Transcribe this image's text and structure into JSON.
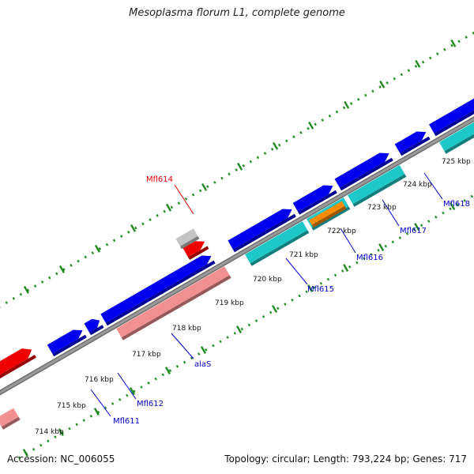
{
  "title": "Mesoplasma florum L1, complete genome",
  "footer": {
    "accession": "Accession: NC_006055",
    "topology": "Topology: circular; Length: 793,224 bp; Genes: 717"
  },
  "colors": {
    "backbone": "#9a9a9a",
    "tick": "#1f8a1f",
    "cds_forward": "#0000ee",
    "cds_reverse": "#1ec8c8",
    "trna_reverse": "#f09090",
    "rrna_reverse": "#ff8c00",
    "pseudo": "#c4c4c4",
    "highlight": "#ee0000",
    "label": "#0000cc",
    "highlight_label": "#dd0000"
  },
  "scale_labels": [
    "714 kbp",
    "715 kbp",
    "716 kbp",
    "717 kbp",
    "718 kbp",
    "719 kbp",
    "720 kbp",
    "721 kbp",
    "722 kbp",
    "723 kbp",
    "724 kbp",
    "725 kbp"
  ],
  "gene_labels": [
    {
      "id": "Mfl611",
      "text": "Mfl611",
      "color": "#0000cc"
    },
    {
      "id": "Mfl612",
      "text": "Mfl612",
      "color": "#0000cc"
    },
    {
      "id": "alaS",
      "text": "alaS",
      "color": "#0000cc"
    },
    {
      "id": "Mfl614",
      "text": "Mfl614",
      "color": "#dd0000"
    },
    {
      "id": "Mfl615",
      "text": "Mfl615",
      "color": "#0000cc"
    },
    {
      "id": "Mfl616",
      "text": "Mfl616",
      "color": "#0000cc"
    },
    {
      "id": "Mfl617",
      "text": "Mfl617",
      "color": "#0000cc"
    },
    {
      "id": "Mfl618",
      "text": "Mfl618",
      "color": "#0000cc"
    }
  ]
}
